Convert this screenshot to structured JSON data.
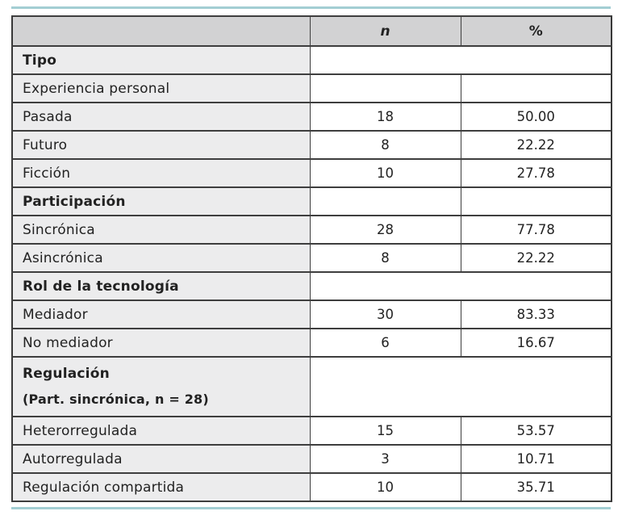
{
  "colors": {
    "accent_rule": "#a3ced3",
    "header_bg": "#d2d2d3",
    "label_column_bg": "#ececed",
    "border": "#3e3e3e"
  },
  "table": {
    "columns": {
      "n": "n",
      "pct": "%"
    },
    "rows": [
      {
        "label": "Tipo",
        "style": "section",
        "merged": true
      },
      {
        "label": "Experiencia personal",
        "n": "",
        "pct": ""
      },
      {
        "label": "Pasada",
        "n": "18",
        "pct": "50.00"
      },
      {
        "label": "Futuro",
        "n": "8",
        "pct": "22.22"
      },
      {
        "label": "Ficción",
        "n": "10",
        "pct": "27.78"
      },
      {
        "label": "Participación",
        "style": "section",
        "n": "",
        "pct": ""
      },
      {
        "label": "Sincrónica",
        "n": "28",
        "pct": "77.78"
      },
      {
        "label": "Asincrónica",
        "n": "8",
        "pct": "22.22"
      },
      {
        "label": "Rol de la tecnología",
        "style": "section",
        "merged": true
      },
      {
        "label": "Mediador",
        "n": "30",
        "pct": "83.33"
      },
      {
        "label": "No mediador",
        "n": "6",
        "pct": "16.67"
      },
      {
        "label": "Regulación",
        "label_line2": "(Part. sincrónica, n = 28)",
        "style": "section",
        "merged": true
      },
      {
        "label": "Heterorregulada",
        "n": "15",
        "pct": "53.57"
      },
      {
        "label": "Autorregulada",
        "n": "3",
        "pct": "10.71"
      },
      {
        "label": "Regulación compartida",
        "n": "10",
        "pct": "35.71"
      }
    ]
  }
}
